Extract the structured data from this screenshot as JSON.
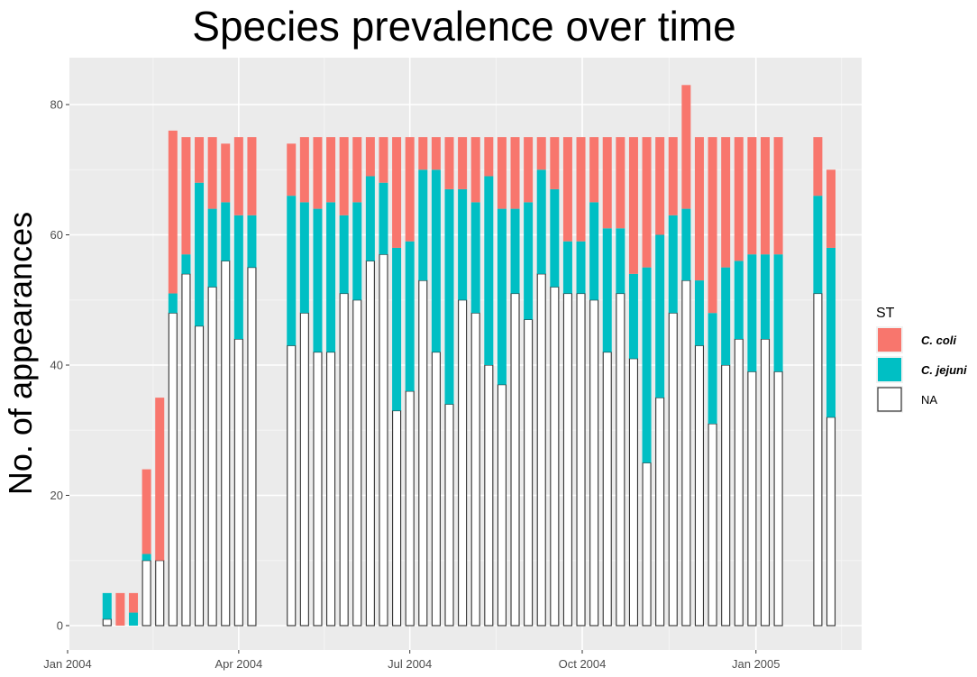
{
  "chart_data": {
    "type": "bar",
    "stacked": true,
    "title": "Species prevalence over time",
    "xlabel": "",
    "ylabel": "No. of appearances",
    "ylim": [
      -3,
      86
    ],
    "yticks": [
      0,
      20,
      40,
      60,
      80
    ],
    "x_unit": "weeks since Jan 2004",
    "xlim": [
      -0.5,
      59
    ],
    "xticks": [
      {
        "label": "Jan 2004",
        "value": 0
      },
      {
        "label": "Apr 2004",
        "value": 13
      },
      {
        "label": "Jul 2004",
        "value": 26
      },
      {
        "label": "Oct 2004",
        "value": 39.1
      },
      {
        "label": "Jan 2005",
        "value": 52.3
      }
    ],
    "grid": true,
    "legend": {
      "title": "ST",
      "position": "right",
      "entries": [
        {
          "name": "C. coli",
          "color": "#F8766D",
          "italic": true
        },
        {
          "name": "C. jejuni",
          "color": "#00BFC4",
          "italic": true
        },
        {
          "name": "NA",
          "color": "#FFFFFF",
          "italic": false
        }
      ]
    },
    "week_index": [
      3,
      4,
      5,
      6,
      7,
      8,
      9,
      10,
      11,
      12,
      13,
      14,
      15,
      17,
      18,
      19,
      20,
      21,
      22,
      23,
      24,
      25,
      26,
      27,
      28,
      29,
      30,
      31,
      32,
      33,
      34,
      35,
      36,
      37,
      38,
      39,
      40,
      41,
      42,
      43,
      44,
      45,
      46,
      47,
      48,
      49,
      50,
      51,
      52,
      53,
      54,
      55,
      57,
      58
    ],
    "series": [
      {
        "name": "NA",
        "values": [
          1,
          0,
          0,
          10,
          10,
          48,
          54,
          46,
          52,
          56,
          44,
          55,
          0,
          43,
          48,
          42,
          42,
          51,
          50,
          56,
          57,
          33,
          36,
          53,
          42,
          34,
          50,
          48,
          40,
          37,
          51,
          47,
          54,
          52,
          51,
          51,
          50,
          42,
          51,
          41,
          25,
          35,
          48,
          53,
          43,
          31,
          40,
          44,
          39,
          44,
          39,
          0,
          51,
          32
        ]
      },
      {
        "name": "C. jejuni",
        "values": [
          4,
          0,
          2,
          1,
          0,
          3,
          3,
          22,
          12,
          9,
          19,
          8,
          0,
          23,
          17,
          22,
          23,
          12,
          15,
          13,
          11,
          25,
          23,
          17,
          28,
          33,
          17,
          17,
          29,
          27,
          13,
          18,
          16,
          15,
          8,
          8,
          15,
          19,
          10,
          13,
          30,
          25,
          15,
          11,
          10,
          17,
          15,
          12,
          18,
          13,
          18,
          0,
          15,
          26
        ]
      },
      {
        "name": "C. coli",
        "values": [
          0,
          5,
          3,
          13,
          25,
          25,
          18,
          7,
          11,
          9,
          12,
          12,
          0,
          8,
          10,
          11,
          10,
          12,
          10,
          6,
          7,
          17,
          16,
          5,
          5,
          8,
          8,
          10,
          6,
          11,
          11,
          10,
          5,
          8,
          16,
          16,
          10,
          14,
          14,
          21,
          20,
          15,
          12,
          19,
          22,
          27,
          20,
          19,
          18,
          18,
          18,
          0,
          9,
          12
        ]
      }
    ],
    "colors": {
      "C. coli": "#F8766D",
      "C. jejuni": "#00BFC4",
      "NA": "#FFFFFF",
      "na_stroke": "#333333",
      "panel": "#EBEBEB",
      "grid_major": "#FFFFFF",
      "grid_minor": "#F5F5F5"
    }
  }
}
